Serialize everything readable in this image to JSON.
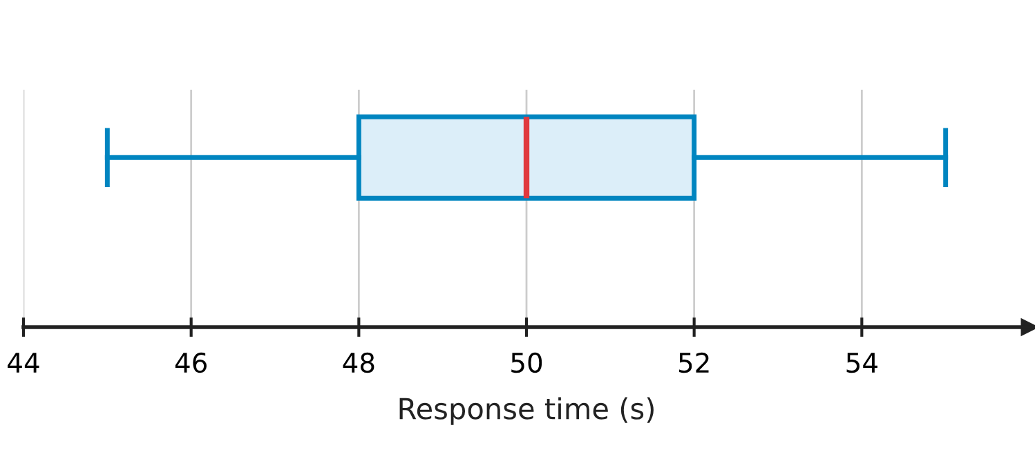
{
  "chart_data": {
    "type": "box",
    "orientation": "horizontal",
    "xlabel": "Response time (s)",
    "categories": [
      null
    ],
    "boxes": [
      {
        "low": 45,
        "q1": 48,
        "median": 50,
        "q3": 52,
        "high": 55
      }
    ],
    "color": "#0085c0",
    "xlim": [
      44,
      56
    ],
    "xticks": [
      44,
      46,
      48,
      50,
      52,
      54
    ],
    "grid": "x"
  }
}
